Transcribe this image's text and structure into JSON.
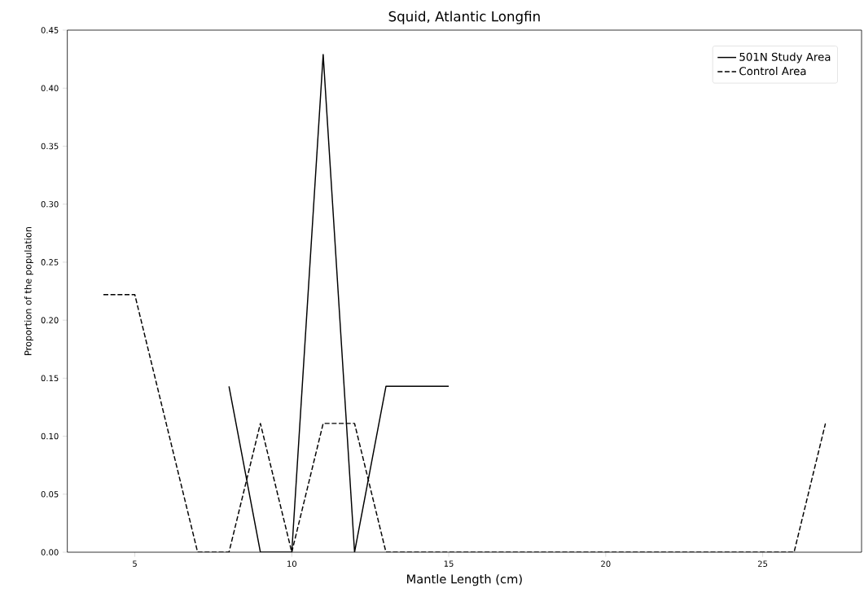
{
  "chart_data": {
    "type": "line",
    "title": "Squid, Atlantic Longfin",
    "xlabel": "Mantle Length (cm)",
    "ylabel": "Proportion of the population",
    "series": [
      {
        "name": "501N Study Area",
        "color": "#000000",
        "line_style": "solid",
        "x": [
          8,
          9,
          10,
          11,
          12,
          13,
          14,
          15
        ],
        "values": [
          0.143,
          0,
          0,
          0.429,
          0,
          0.143,
          0.143,
          0.143
        ]
      },
      {
        "name": "Control Area",
        "color": "#000000",
        "line_style": "dashed",
        "x": [
          4,
          5,
          6,
          7,
          8,
          9,
          10,
          11,
          12,
          13,
          14,
          15,
          16,
          17,
          18,
          19,
          20,
          21,
          22,
          23,
          24,
          25,
          26,
          27
        ],
        "values": [
          0.222,
          0.222,
          0.111,
          0,
          0,
          0.111,
          0,
          0.111,
          0.111,
          0,
          0,
          0,
          0,
          0,
          0,
          0,
          0,
          0,
          0,
          0,
          0,
          0,
          0,
          0.111
        ]
      }
    ],
    "xlim": [
      2.85,
      28.15
    ],
    "xticks": [
      5,
      10,
      15,
      20,
      25
    ],
    "ylim": [
      0,
      0.45
    ],
    "yticks": [
      {
        "value": 0,
        "label": "0.00"
      },
      {
        "value": 0.05,
        "label": "0.05"
      },
      {
        "value": 0.1,
        "label": "0.10"
      },
      {
        "value": 0.15,
        "label": "0.15"
      },
      {
        "value": 0.2,
        "label": "0.20"
      },
      {
        "value": 0.25,
        "label": "0.25"
      },
      {
        "value": 0.3,
        "label": "0.30"
      },
      {
        "value": 0.35,
        "label": "0.35"
      },
      {
        "value": 0.4,
        "label": "0.40"
      },
      {
        "value": 0.45,
        "label": "0.45"
      }
    ],
    "legend": "top right",
    "grid": false
  }
}
